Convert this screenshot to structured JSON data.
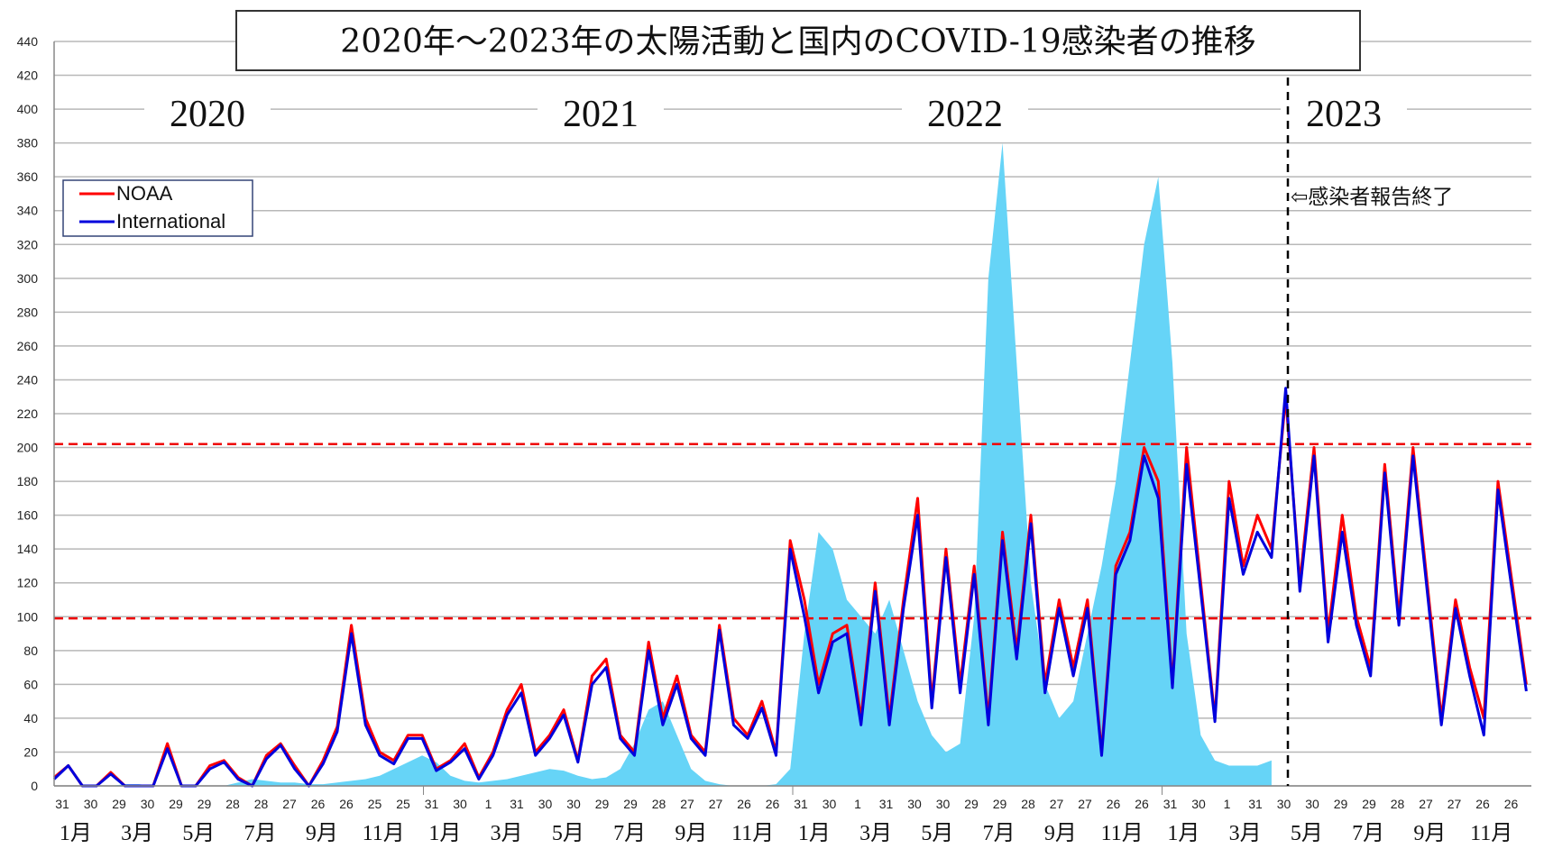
{
  "chart_data": {
    "type": "line",
    "title": "2020年～2023年の太陽活動と国内のCOVID-19感染者の推移",
    "xlabel": "",
    "ylabel": "",
    "ylim": [
      0,
      440
    ],
    "yticks": [
      0,
      20,
      40,
      60,
      80,
      100,
      120,
      140,
      160,
      180,
      200,
      220,
      240,
      260,
      280,
      300,
      320,
      340,
      360,
      380,
      400,
      420,
      440
    ],
    "grid": true,
    "x_start": "2020-01-01",
    "x_end": "2023-12-31",
    "step_days": 14,
    "years": [
      "2020",
      "2021",
      "2022",
      "2023"
    ],
    "day_tick_labels": [
      [
        "31",
        "30",
        "29",
        "30",
        "29",
        "29",
        "28",
        "28",
        "27",
        "26",
        "26",
        "25",
        "25"
      ],
      [
        "31",
        "30",
        "1",
        "31",
        "30",
        "30",
        "29",
        "29",
        "28",
        "27",
        "27",
        "26",
        "26"
      ],
      [
        "31",
        "30",
        "1",
        "31",
        "30",
        "30",
        "29",
        "29",
        "28",
        "27",
        "27",
        "26",
        "26"
      ],
      [
        "31",
        "30",
        "1",
        "31",
        "30",
        "30",
        "29",
        "29",
        "28",
        "27",
        "27",
        "26",
        "26"
      ]
    ],
    "month_labels": [
      "1月",
      "3月",
      "5月",
      "7月",
      "9月",
      "11月"
    ],
    "reference_lines": [
      202,
      99
    ],
    "annotation": "⇦感染者報告終了",
    "annotation_date": "2023-05-08",
    "legend": {
      "position": "top-left",
      "entries": [
        "NOAA",
        "International"
      ]
    },
    "series": [
      {
        "name": "NOAA",
        "color": "#ff0000",
        "values": [
          5,
          12,
          0,
          0,
          8,
          0,
          0,
          0,
          25,
          0,
          0,
          12,
          15,
          5,
          0,
          18,
          25,
          12,
          0,
          15,
          35,
          95,
          40,
          20,
          15,
          30,
          30,
          10,
          15,
          25,
          5,
          20,
          45,
          60,
          20,
          30,
          45,
          15,
          65,
          75,
          30,
          20,
          85,
          40,
          65,
          30,
          20,
          95,
          40,
          30,
          50,
          20,
          145,
          110,
          60,
          90,
          95,
          40,
          120,
          40,
          110,
          170,
          50,
          140,
          60,
          130,
          40,
          150,
          80,
          160,
          60,
          110,
          70,
          110,
          20,
          130,
          150,
          200,
          180,
          60,
          200,
          120,
          40,
          180,
          130,
          160,
          140,
          230,
          120,
          200,
          90,
          160,
          100,
          70,
          190,
          100,
          200,
          120,
          40,
          110,
          70,
          40,
          180,
          120,
          60
        ]
      },
      {
        "name": "International",
        "color": "#0000dd",
        "values": [
          4,
          12,
          0,
          0,
          7,
          0,
          0,
          0,
          22,
          0,
          0,
          10,
          14,
          4,
          0,
          16,
          24,
          10,
          0,
          13,
          32,
          90,
          36,
          18,
          13,
          28,
          28,
          9,
          14,
          22,
          4,
          18,
          42,
          55,
          18,
          28,
          42,
          14,
          60,
          70,
          28,
          18,
          80,
          36,
          60,
          28,
          18,
          92,
          36,
          28,
          46,
          18,
          140,
          100,
          55,
          85,
          90,
          36,
          115,
          36,
          105,
          160,
          46,
          135,
          55,
          125,
          36,
          145,
          75,
          155,
          55,
          105,
          65,
          105,
          18,
          125,
          145,
          195,
          170,
          58,
          190,
          115,
          38,
          170,
          125,
          150,
          135,
          235,
          115,
          195,
          85,
          150,
          95,
          65,
          185,
          95,
          195,
          115,
          36,
          105,
          65,
          30,
          175,
          115,
          56
        ]
      },
      {
        "name": "COVID-19感染者",
        "color": "#66d4f7",
        "values": [
          0,
          0,
          0,
          0,
          0,
          1,
          1,
          0,
          0,
          0,
          0,
          0,
          0,
          2,
          4,
          3,
          2,
          2,
          1,
          1,
          2,
          3,
          4,
          6,
          10,
          14,
          18,
          14,
          6,
          3,
          2,
          3,
          4,
          6,
          8,
          10,
          9,
          6,
          4,
          5,
          10,
          25,
          45,
          50,
          30,
          10,
          3,
          1,
          0,
          0,
          0,
          1,
          10,
          90,
          150,
          140,
          110,
          100,
          90,
          110,
          80,
          50,
          30,
          20,
          25,
          100,
          300,
          380,
          250,
          120,
          60,
          40,
          50,
          90,
          130,
          180,
          250,
          320,
          360,
          250,
          90,
          30,
          15,
          12,
          12,
          12,
          15
        ]
      }
    ]
  }
}
